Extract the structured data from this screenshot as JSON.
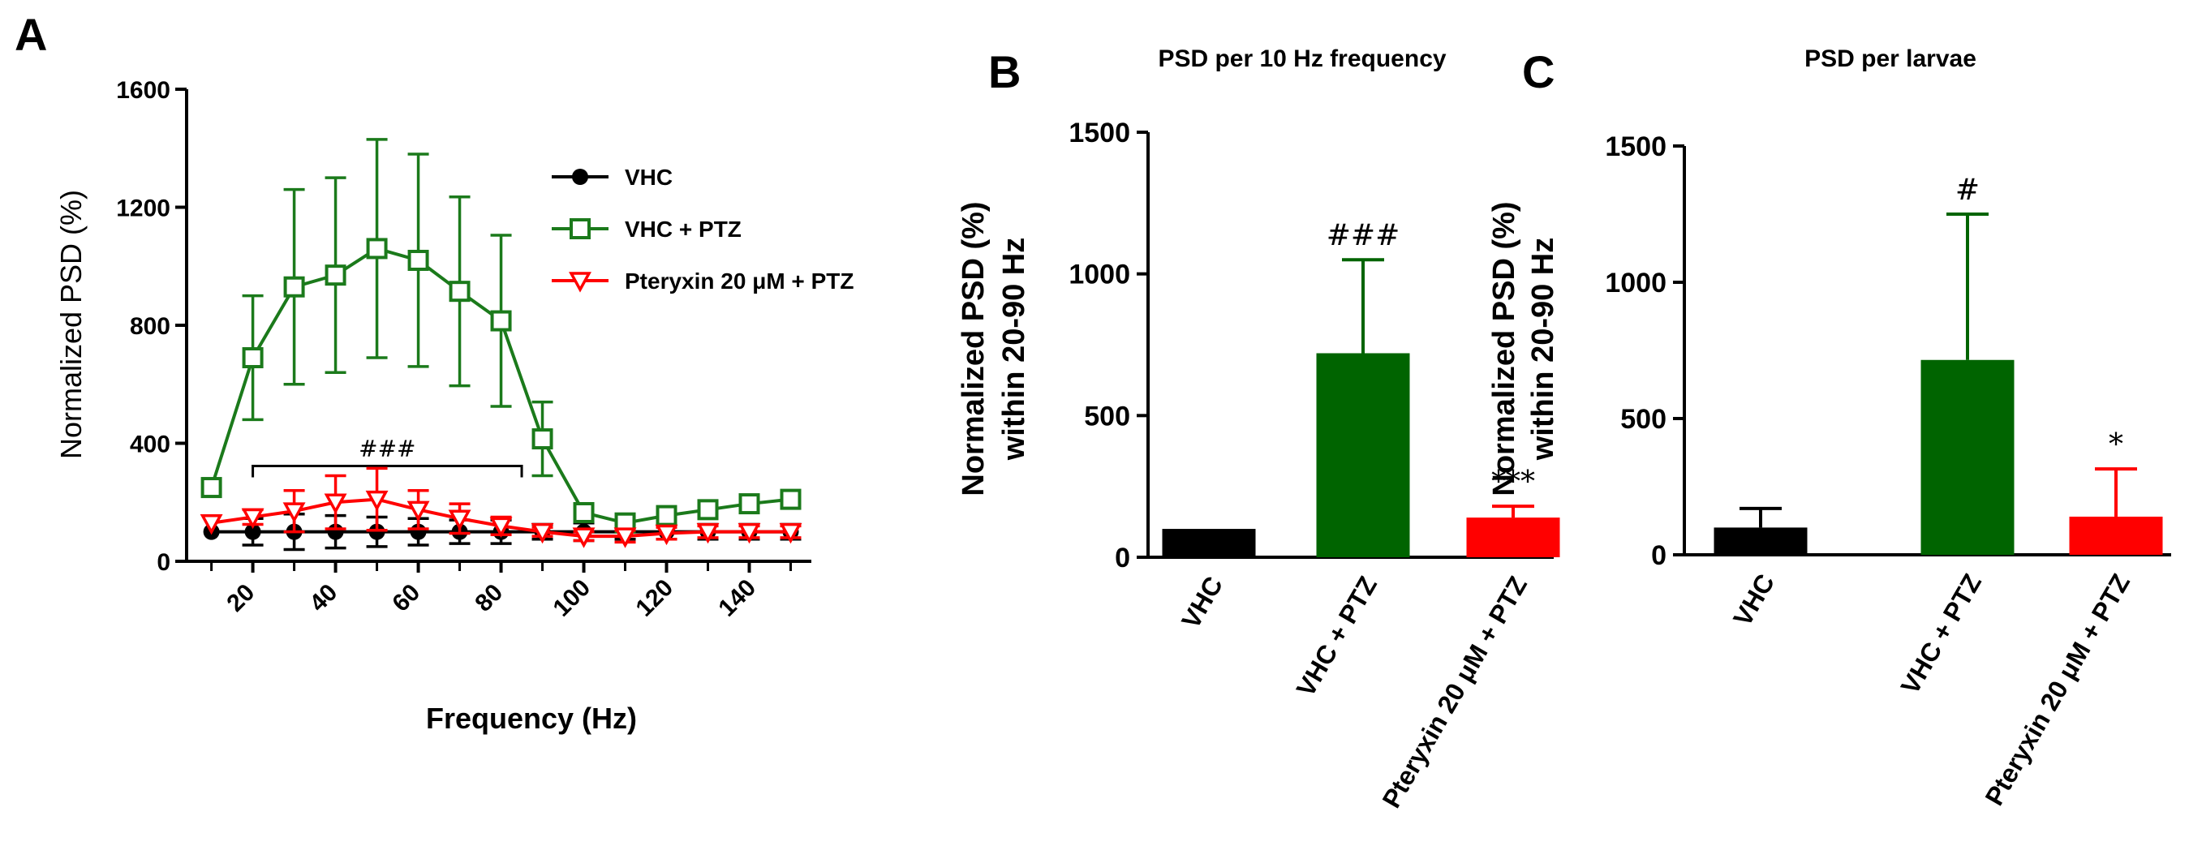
{
  "chart_data": [
    {
      "panel": "A",
      "type": "line",
      "title": "",
      "xlabel": "Frequency (Hz)",
      "ylabel": "Normalized PSD (%)",
      "ylim": [
        0,
        1600
      ],
      "yticks": [
        0,
        400,
        800,
        1200,
        1600
      ],
      "xticks": [
        20,
        40,
        60,
        80,
        100,
        120,
        140
      ],
      "x": [
        10,
        20,
        30,
        40,
        50,
        60,
        70,
        80,
        90,
        100,
        110,
        120,
        130,
        140,
        150
      ],
      "series": [
        {
          "name": "VHC",
          "color": "#000000",
          "marker": "circle",
          "values": [
            100,
            100,
            100,
            100,
            100,
            100,
            100,
            100,
            100,
            100,
            100,
            100,
            100,
            100,
            100
          ],
          "errors": [
            0,
            45,
            60,
            55,
            50,
            45,
            40,
            40,
            25,
            30,
            25,
            25,
            25,
            25,
            25
          ]
        },
        {
          "name": "VHC + PTZ",
          "color": "#1b7a1b",
          "marker": "square-open",
          "values": [
            250,
            690,
            930,
            970,
            1060,
            1020,
            915,
            815,
            415,
            165,
            130,
            155,
            175,
            195,
            210
          ],
          "errors": [
            0,
            210,
            330,
            330,
            370,
            360,
            320,
            290,
            125,
            0,
            0,
            0,
            0,
            0,
            25
          ]
        },
        {
          "name": "Pteryxin 20 μM + PTZ",
          "color": "#ff0000",
          "marker": "triangle-down-open",
          "values": [
            130,
            150,
            170,
            200,
            210,
            175,
            145,
            120,
            100,
            85,
            85,
            95,
            100,
            100,
            100
          ],
          "errors": [
            0,
            25,
            70,
            90,
            105,
            65,
            50,
            30,
            15,
            15,
            20,
            20,
            20,
            20,
            20
          ]
        }
      ],
      "annotations": [
        {
          "text": "###",
          "x_from": 20,
          "x_to": 85
        }
      ]
    },
    {
      "panel": "B",
      "type": "bar",
      "title": "PSD per 10 Hz frequency",
      "ylabel_line1": "Normalized PSD (%)",
      "ylabel_line2": "within 20-90 Hz",
      "ylim": [
        0,
        1500
      ],
      "yticks": [
        0,
        500,
        1000,
        1500
      ],
      "categories": [
        "VHC",
        "VHC + PTZ",
        "Pteryxin 20 μM + PTZ"
      ],
      "values": [
        100,
        720,
        140
      ],
      "errors": [
        0,
        330,
        40
      ],
      "colors": [
        "#000000",
        "#006400",
        "#ff0000"
      ],
      "annotations": [
        "",
        "###",
        "***"
      ]
    },
    {
      "panel": "C",
      "type": "bar",
      "title": "PSD per larvae",
      "ylabel_line1": "Normalized PSD (%)",
      "ylabel_line2": "within 20-90 Hz",
      "ylim": [
        0,
        1500
      ],
      "yticks": [
        0,
        500,
        1000,
        1500
      ],
      "categories": [
        "VHC",
        "VHC + PTZ",
        "Pteryxin 20 μM + PTZ"
      ],
      "values": [
        100,
        715,
        140
      ],
      "errors": [
        70,
        535,
        175
      ],
      "colors": [
        "#000000",
        "#006400",
        "#ff0000"
      ],
      "annotations": [
        "",
        "#",
        "*"
      ]
    }
  ],
  "panel_labels": [
    "A",
    "B",
    "C"
  ]
}
